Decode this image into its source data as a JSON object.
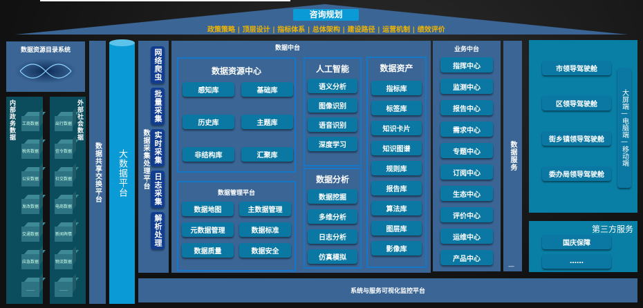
{
  "colors": {
    "panel": "#3a6595",
    "accent": "#0a9ad6",
    "button": "#0a78a3",
    "highlight": "#f0b400"
  },
  "roof": {
    "title": "咨询规划",
    "subtitle": "政策策略 | 顶层设计 | 指标体系 | 总体架构 | 建设路径 | 运营机制 | 绩效评价"
  },
  "catalog": {
    "title": "数据资源目录系统",
    "image": "dna-helix"
  },
  "internal": {
    "title": "内部政务数据",
    "items": [
      "工商数据",
      "税务数据",
      "公安数据",
      "发改数据",
      "交通数据",
      "应急数据",
      "……"
    ]
  },
  "external": {
    "title": "外部社会数据",
    "items": [
      "出行数据",
      "信令数据",
      "社交数据",
      "电商数据",
      "新闻舆情",
      "物流数据",
      "……"
    ]
  },
  "exchange": {
    "title": "数据共享交换平台"
  },
  "bigdata": {
    "title": "大数据平台"
  },
  "collect": {
    "title": "数据采集处理平台",
    "items": [
      "网络爬虫",
      "批量采集",
      "实时采集",
      "日志采集",
      "解析处理"
    ]
  },
  "middle": {
    "title": "数据中台",
    "resource": {
      "title": "数据资源中心",
      "items": [
        "感知库",
        "基础库",
        "历史库",
        "主题库",
        "非结构库",
        "汇聚库"
      ]
    },
    "management": {
      "title": "数据管理平台",
      "items": [
        "数据地图",
        "主数据管理",
        "元数据管理",
        "数据标准",
        "数据质量",
        "数据安全"
      ]
    },
    "ai": {
      "title": "人工智能",
      "items": [
        "语义分析",
        "图像识别",
        "语音识别",
        "深度学习"
      ]
    },
    "analysis": {
      "title": "数据分析",
      "items": [
        "数据挖掘",
        "多维分析",
        "日志分析",
        "仿真模拟"
      ]
    },
    "assets": {
      "title": "数据资产",
      "items": [
        "指标库",
        "标签库",
        "知识卡片",
        "知识图谱",
        "规则库",
        "报告库",
        "算法库",
        "图层库",
        "影像库"
      ]
    }
  },
  "business": {
    "title": "业务中台",
    "items": [
      "指挥中心",
      "监测中心",
      "报告中心",
      "需求中心",
      "专题中心",
      "订阅中心",
      "生态中心",
      "评价中心",
      "运维中心",
      "产品中心"
    ]
  },
  "service": {
    "title": "数据服务",
    "mark": "—"
  },
  "cockpit": {
    "items": [
      "市领导驾驶舱",
      "区领导驾驶舱",
      "街乡镇领导驾驶舱",
      "委办局领导驾驶舱"
    ],
    "terminals": "大屏端—电脑端—移动端"
  },
  "thirdparty": {
    "title": "第三方服务",
    "items": [
      "国庆保障",
      "……"
    ]
  },
  "monitor": {
    "title": "系统与服务可视化监控平台"
  }
}
